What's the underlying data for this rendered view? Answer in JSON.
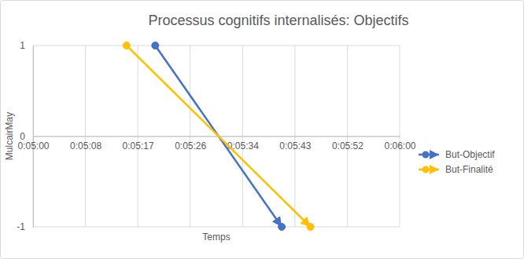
{
  "chart_data": {
    "type": "line",
    "title": "Processus cognitifs internalisés: Objectifs",
    "x_label": "Temps",
    "y_label": "MulcairMay",
    "xlim": [
      300,
      360
    ],
    "xticks": [
      {
        "value": 300,
        "label": "0:05:00"
      },
      {
        "value": 308.57,
        "label": "0:05:08"
      },
      {
        "value": 317.14,
        "label": "0:05:17"
      },
      {
        "value": 325.71,
        "label": "0:05:26"
      },
      {
        "value": 334.29,
        "label": "0:05:34"
      },
      {
        "value": 342.86,
        "label": "0:05:43"
      },
      {
        "value": 351.43,
        "label": "0:05:52"
      },
      {
        "value": 360,
        "label": "0:06:00"
      }
    ],
    "ylim": [
      -1,
      1
    ],
    "yticks": [
      -1,
      0,
      1
    ],
    "grid": true,
    "legend": "right",
    "series": [
      {
        "name": "But-Objectif",
        "color": "#4472c4",
        "marker": "circle",
        "line_style": "arrow",
        "x": [
          320,
          340.7
        ],
        "values": [
          1,
          -1
        ]
      },
      {
        "name": "But-Finalité",
        "color": "#ffc000",
        "marker": "circle",
        "line_style": "arrow",
        "x": [
          315.3,
          345.4
        ],
        "values": [
          1,
          -1
        ]
      }
    ]
  }
}
